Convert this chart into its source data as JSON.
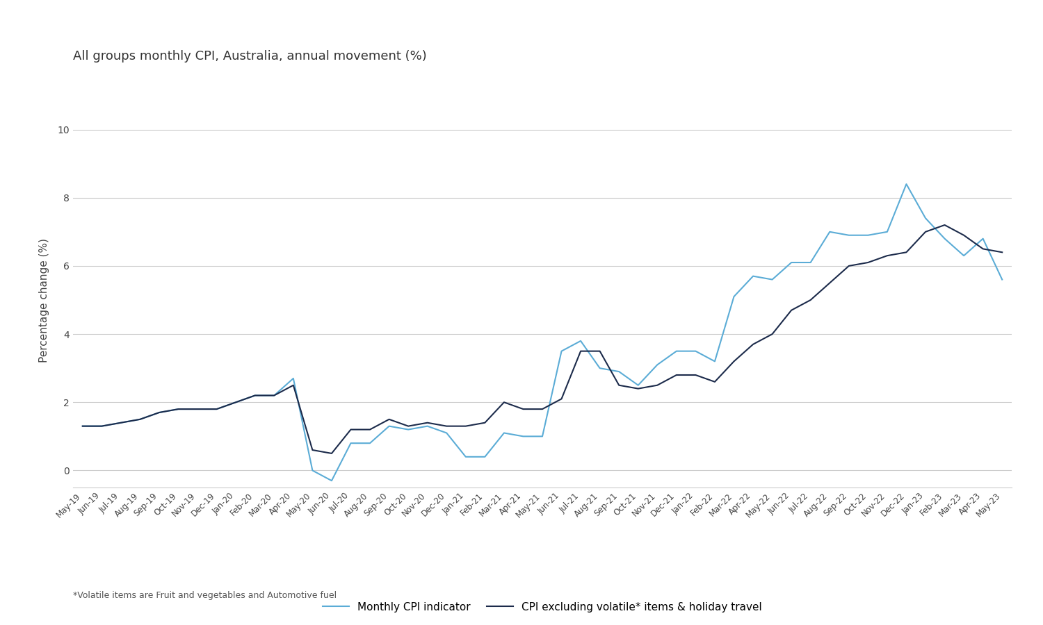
{
  "title": "All groups monthly CPI, Australia, annual movement (%)",
  "ylabel": "Percentage change (%)",
  "footnote": "*Volatile items are Fruit and vegetables and Automotive fuel",
  "legend_label1": "Monthly CPI indicator",
  "legend_label2": "CPI excluding volatile* items & holiday travel",
  "color1": "#5BACD6",
  "color2": "#1C2B4B",
  "background_color": "#FFFFFF",
  "ylim": [
    -0.5,
    10.5
  ],
  "yticks": [
    0,
    2,
    4,
    6,
    8,
    10
  ],
  "labels": [
    "May-19",
    "Jun-19",
    "Jul-19",
    "Aug-19",
    "Sep-19",
    "Oct-19",
    "Nov-19",
    "Dec-19",
    "Jan-20",
    "Feb-20",
    "Mar-20",
    "Apr-20",
    "May-20",
    "Jun-20",
    "Jul-20",
    "Aug-20",
    "Sep-20",
    "Oct-20",
    "Nov-20",
    "Dec-20",
    "Jan-21",
    "Feb-21",
    "Mar-21",
    "Apr-21",
    "May-21",
    "Jun-21",
    "Jul-21",
    "Aug-21",
    "Sep-21",
    "Oct-21",
    "Nov-21",
    "Dec-21",
    "Jan-22",
    "Feb-22",
    "Mar-22",
    "Apr-22",
    "May-22",
    "Jun-22",
    "Jul-22",
    "Aug-22",
    "Sep-22",
    "Oct-22",
    "Nov-22",
    "Dec-22",
    "Jan-23",
    "Feb-23",
    "Mar-23",
    "Apr-23",
    "May-23"
  ],
  "cpi_indicator": [
    1.3,
    1.3,
    1.4,
    1.5,
    1.7,
    1.8,
    1.8,
    1.8,
    2.0,
    2.2,
    2.2,
    2.7,
    0.0,
    -0.3,
    0.8,
    0.8,
    1.3,
    1.2,
    1.3,
    1.1,
    0.4,
    0.4,
    1.1,
    1.0,
    1.0,
    3.5,
    3.8,
    3.0,
    2.9,
    2.5,
    3.1,
    3.5,
    3.5,
    3.2,
    5.1,
    5.7,
    5.6,
    6.1,
    6.1,
    7.0,
    6.9,
    6.9,
    7.0,
    8.4,
    7.4,
    6.8,
    6.3,
    6.8,
    5.6
  ],
  "cpi_excl": [
    1.3,
    1.3,
    1.4,
    1.5,
    1.7,
    1.8,
    1.8,
    1.8,
    2.0,
    2.2,
    2.2,
    2.5,
    0.6,
    0.5,
    1.2,
    1.2,
    1.5,
    1.3,
    1.4,
    1.3,
    1.3,
    1.4,
    2.0,
    1.8,
    1.8,
    2.1,
    3.5,
    3.5,
    2.5,
    2.4,
    2.5,
    2.8,
    2.8,
    2.6,
    3.2,
    3.7,
    4.0,
    4.7,
    5.0,
    5.5,
    6.0,
    6.1,
    6.3,
    6.4,
    7.0,
    7.2,
    6.9,
    6.5,
    6.4
  ]
}
